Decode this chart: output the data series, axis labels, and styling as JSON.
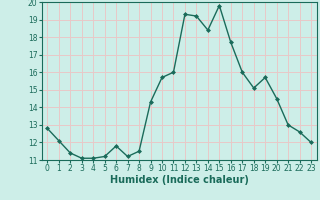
{
  "x": [
    0,
    1,
    2,
    3,
    4,
    5,
    6,
    7,
    8,
    9,
    10,
    11,
    12,
    13,
    14,
    15,
    16,
    17,
    18,
    19,
    20,
    21,
    22,
    23
  ],
  "y": [
    12.8,
    12.1,
    11.4,
    11.1,
    11.1,
    11.2,
    11.8,
    11.2,
    11.5,
    14.3,
    15.7,
    16.0,
    19.3,
    19.2,
    18.4,
    19.8,
    17.7,
    16.0,
    15.1,
    15.7,
    14.5,
    13.0,
    12.6,
    12.0
  ],
  "line_color": "#1a6b5a",
  "marker": "D",
  "markersize": 2.0,
  "linewidth": 1.0,
  "xlabel": "Humidex (Indice chaleur)",
  "xlabel_fontsize": 7,
  "ylim": [
    11,
    20
  ],
  "xlim": [
    -0.5,
    23.5
  ],
  "yticks": [
    11,
    12,
    13,
    14,
    15,
    16,
    17,
    18,
    19,
    20
  ],
  "xticks": [
    0,
    1,
    2,
    3,
    4,
    5,
    6,
    7,
    8,
    9,
    10,
    11,
    12,
    13,
    14,
    15,
    16,
    17,
    18,
    19,
    20,
    21,
    22,
    23
  ],
  "tick_fontsize": 5.5,
  "bg_color": "#cdeee8",
  "grid_color": "#e8c8c8",
  "axes_edge_color": "#1a6b5a"
}
